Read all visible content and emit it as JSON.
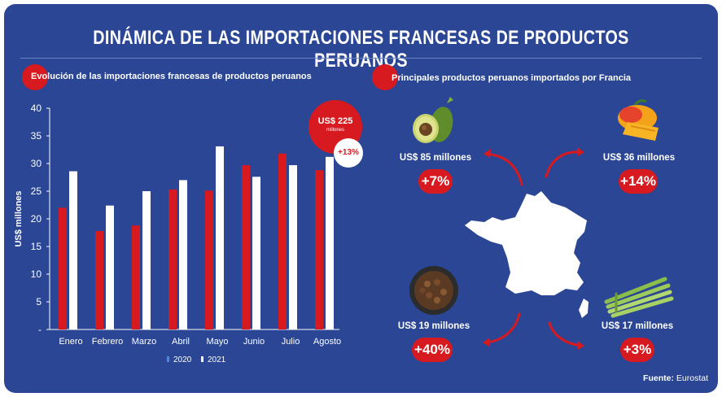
{
  "title": "DINÁMICA DE LAS IMPORTACIONES FRANCESAS DE PRODUCTOS PERUANOS",
  "colors": {
    "background": "#2a4694",
    "accent_red": "#d71920",
    "series_2021": "#ffffff"
  },
  "chart_section_title": "Evolución de las importaciones francesas de productos peruanos",
  "products_section_title": "Principales productos peruanos importados por Francia",
  "total_callout": {
    "value": "US$ 225",
    "unit": "millones",
    "growth": "+13%"
  },
  "chart_data": {
    "type": "bar",
    "title": "Evolución de las importaciones francesas de productos peruanos",
    "ylabel": "US$ millones",
    "xlabel": "",
    "categories": [
      "Enero",
      "Febrero",
      "Marzo",
      "Abril",
      "Mayo",
      "Junio",
      "Julio",
      "Agosto"
    ],
    "series": [
      {
        "name": "2020",
        "color": "#d71920",
        "values": [
          22.0,
          17.8,
          18.8,
          25.3,
          25.1,
          29.7,
          31.8,
          28.8
        ]
      },
      {
        "name": "2021",
        "color": "#ffffff",
        "values": [
          28.6,
          22.4,
          25.0,
          27.0,
          33.1,
          27.6,
          29.7,
          31.2
        ]
      }
    ],
    "ylim": [
      0,
      40
    ],
    "yticks": [
      "-",
      "5",
      "10",
      "15",
      "20",
      "25",
      "30",
      "35",
      "40"
    ],
    "legend_position": "bottom",
    "grid": false
  },
  "products": [
    {
      "name": "avocado",
      "value_label": "US$ 85 millones",
      "growth": "+7%",
      "icon": "avocado-icon"
    },
    {
      "name": "mango",
      "value_label": "US$ 36 millones",
      "growth": "+14%",
      "icon": "mango-icon"
    },
    {
      "name": "coffee",
      "value_label": "US$ 19 millones",
      "growth": "+40%",
      "icon": "coffee-beans-icon"
    },
    {
      "name": "asparagus",
      "value_label": "US$ 17 millones",
      "growth": "+3%",
      "icon": "asparagus-icon"
    }
  ],
  "source": {
    "label": "Fuente:",
    "value": "Eurostat"
  }
}
